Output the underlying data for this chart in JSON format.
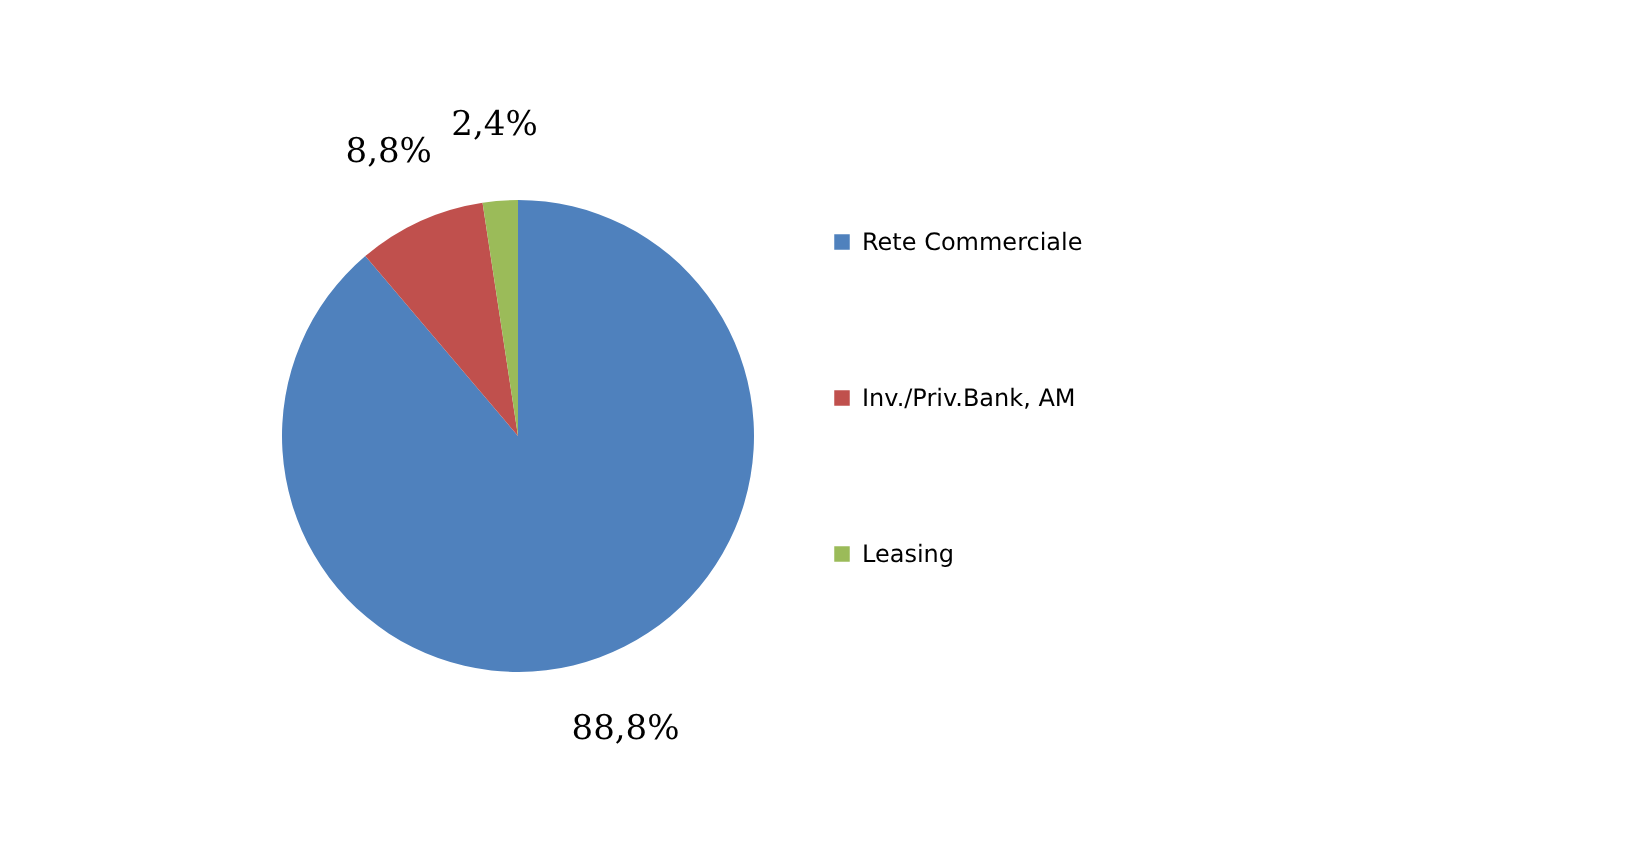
{
  "chart_data": {
    "type": "pie",
    "categories": [
      "Rete Commerciale",
      "Inv./Priv.Bank, AM",
      "Leasing"
    ],
    "values": [
      88.8,
      8.8,
      2.4
    ],
    "colors": [
      "#4f81bd",
      "#c0504d",
      "#9bbb59"
    ],
    "value_labels": [
      "88,8%",
      "8,8%",
      "2,4%"
    ],
    "legend": "right"
  }
}
